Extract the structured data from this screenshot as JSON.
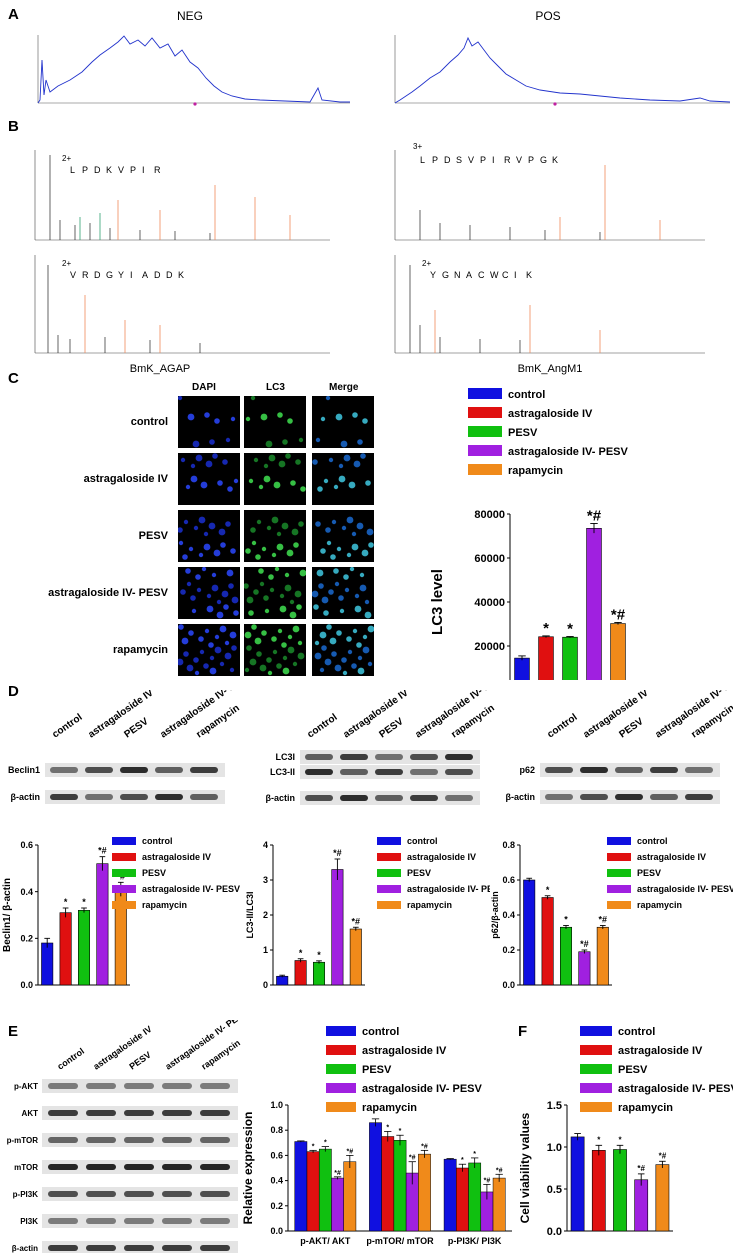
{
  "panel_letters": {
    "A": "A",
    "B": "B",
    "C": "C",
    "D": "D",
    "E": "E",
    "F": "F"
  },
  "panel_a": {
    "neg_title": "NEG",
    "pos_title": "POS"
  },
  "panel_b": {
    "spectra": [
      {
        "caption": "BmK_AGAP",
        "sequence": [
          "L",
          "P",
          "D",
          "K",
          "V",
          "P",
          "I",
          "R"
        ],
        "charge": "2+"
      },
      {
        "caption": "",
        "sequence": [
          "V",
          "R",
          "D",
          "G",
          "Y",
          "I",
          "A",
          "D",
          "D",
          "K"
        ],
        "charge": "2+"
      },
      {
        "caption": "BmK_AngM1",
        "sequence": [
          "L",
          "P",
          "D",
          "S",
          "V",
          "P",
          "I",
          "R",
          "V",
          "P",
          "G",
          "K"
        ],
        "charge": "3+"
      },
      {
        "caption": "",
        "sequence": [
          "Y",
          "G",
          "N",
          "A",
          "C",
          "W",
          "C",
          "I",
          "K"
        ],
        "charge": "2+"
      }
    ],
    "caption_left": "BmK_AGAP",
    "caption_right": "BmK_AngM1"
  },
  "panel_c": {
    "col_headers": [
      "DAPI",
      "LC3",
      "Merge"
    ],
    "row_labels": [
      "control",
      "astragaloside IV",
      "PESV",
      "astragaloside IV- PESV",
      "rapamycin"
    ]
  },
  "legend": {
    "items": [
      {
        "label": "control",
        "color": "#1010e0"
      },
      {
        "label": "astragaloside IV",
        "color": "#e01010"
      },
      {
        "label": "PESV",
        "color": "#10c010"
      },
      {
        "label": "astragaloside IV- PESV",
        "color": "#a020e0"
      },
      {
        "label": "rapamycin",
        "color": "#f08a1a"
      }
    ]
  },
  "panel_d": {
    "lane_labels": [
      "control",
      "astragaloside IV",
      "PESV",
      "astragaloside IV- PESV",
      "rapamycin"
    ],
    "blot1_labels": [
      "Beclin1",
      "β-actin"
    ],
    "blot2_labels": [
      "LC3I",
      "LC3-II",
      "β-actin"
    ],
    "blot3_labels": [
      "p62",
      "β-actin"
    ]
  },
  "panel_e": {
    "lane_labels": [
      "control",
      "astragaloside IV",
      "PESV",
      "astragaloside IV- PESV",
      "rapamycin"
    ],
    "blot_labels": [
      "p-AKT",
      "AKT",
      "p-mTOR",
      "mTOR",
      "p-PI3K",
      "PI3K",
      "β-actin"
    ]
  },
  "chart_data": [
    {
      "id": "C",
      "type": "bar",
      "categories": [
        "control",
        "astragaloside IV",
        "PESV",
        "astragaloside IV- PESV",
        "rapamycin"
      ],
      "values": [
        14500,
        24200,
        24000,
        73500,
        30200
      ],
      "errors": [
        1000,
        400,
        300,
        2200,
        500
      ],
      "annotations": [
        "",
        "*",
        "*",
        "*#",
        "*#"
      ],
      "ylabel": "LC3 level",
      "ylim": [
        0,
        80000
      ],
      "yticks": [
        "0",
        "20000",
        "40000",
        "60000",
        "80000"
      ]
    },
    {
      "id": "D1",
      "type": "bar",
      "categories": [
        "control",
        "astragaloside IV",
        "PESV",
        "astragaloside IV- PESV",
        "rapamycin"
      ],
      "values": [
        0.18,
        0.31,
        0.32,
        0.52,
        0.41
      ],
      "errors": [
        0.02,
        0.02,
        0.01,
        0.03,
        0.03
      ],
      "annotations": [
        "",
        "*",
        "*",
        "*#",
        "*#"
      ],
      "ylabel": "Beclin1/ β-actin",
      "ylim": [
        0,
        0.6
      ],
      "yticks": [
        "0.0",
        "0.2",
        "0.4",
        "0.6"
      ]
    },
    {
      "id": "D2",
      "type": "bar",
      "categories": [
        "control",
        "astragaloside IV",
        "PESV",
        "astragaloside IV- PESV",
        "rapamycin"
      ],
      "values": [
        0.25,
        0.7,
        0.65,
        3.3,
        1.6
      ],
      "errors": [
        0.03,
        0.05,
        0.04,
        0.3,
        0.05
      ],
      "annotations": [
        "",
        "*",
        "*",
        "*#",
        "*#"
      ],
      "ylabel": "LC3-II/LC3I",
      "ylim": [
        0,
        4
      ],
      "yticks": [
        "0",
        "1",
        "2",
        "3",
        "4"
      ]
    },
    {
      "id": "D3",
      "type": "bar",
      "categories": [
        "control",
        "astragaloside IV",
        "PESV",
        "astragaloside IV- PESV",
        "rapamycin"
      ],
      "values": [
        0.6,
        0.5,
        0.33,
        0.19,
        0.33
      ],
      "errors": [
        0.01,
        0.01,
        0.01,
        0.01,
        0.01
      ],
      "annotations": [
        "",
        "*",
        "*",
        "*#",
        "*#"
      ],
      "ylabel": "p62/β-actin",
      "ylim": [
        0,
        0.8
      ],
      "yticks": [
        "0.0",
        "0.2",
        "0.4",
        "0.6",
        "0.8"
      ]
    },
    {
      "id": "E",
      "type": "bar",
      "categories": [
        "p-AKT/ AKT",
        "p-mTOR/ mTOR",
        "p-PI3K/ PI3K"
      ],
      "series": [
        {
          "name": "control",
          "values": [
            0.71,
            0.86,
            0.57
          ],
          "errors": [
            0.005,
            0.03,
            0.005
          ],
          "annotations": [
            "",
            "",
            ""
          ]
        },
        {
          "name": "astragaloside IV",
          "values": [
            0.63,
            0.75,
            0.5
          ],
          "errors": [
            0.01,
            0.04,
            0.03
          ],
          "annotations": [
            "*",
            "*",
            "*"
          ]
        },
        {
          "name": "PESV",
          "values": [
            0.65,
            0.72,
            0.54
          ],
          "errors": [
            0.02,
            0.04,
            0.04
          ],
          "annotations": [
            "*",
            "*",
            "*"
          ]
        },
        {
          "name": "astragaloside IV- PESV",
          "values": [
            0.42,
            0.46,
            0.31
          ],
          "errors": [
            0.01,
            0.09,
            0.06
          ],
          "annotations": [
            "*#",
            "*#",
            "*#"
          ]
        },
        {
          "name": "rapamycin",
          "values": [
            0.55,
            0.61,
            0.42
          ],
          "errors": [
            0.05,
            0.03,
            0.03
          ],
          "annotations": [
            "*#",
            "*#",
            "*#"
          ]
        }
      ],
      "ylabel": "Relative expression",
      "ylim": [
        0,
        1.0
      ],
      "yticks": [
        "0.0",
        "0.2",
        "0.4",
        "0.6",
        "0.8",
        "1.0"
      ]
    },
    {
      "id": "F",
      "type": "bar",
      "categories": [
        "control",
        "astragaloside IV",
        "PESV",
        "astragaloside IV- PESV",
        "rapamycin"
      ],
      "values": [
        1.12,
        0.96,
        0.97,
        0.61,
        0.79
      ],
      "errors": [
        0.04,
        0.06,
        0.05,
        0.07,
        0.04
      ],
      "annotations": [
        "",
        "*",
        "*",
        "*#",
        "*#"
      ],
      "ylabel": "Cell viability values",
      "ylim": [
        0,
        1.5
      ],
      "yticks": [
        "0.0",
        "0.5",
        "1.0",
        "1.5"
      ]
    }
  ]
}
